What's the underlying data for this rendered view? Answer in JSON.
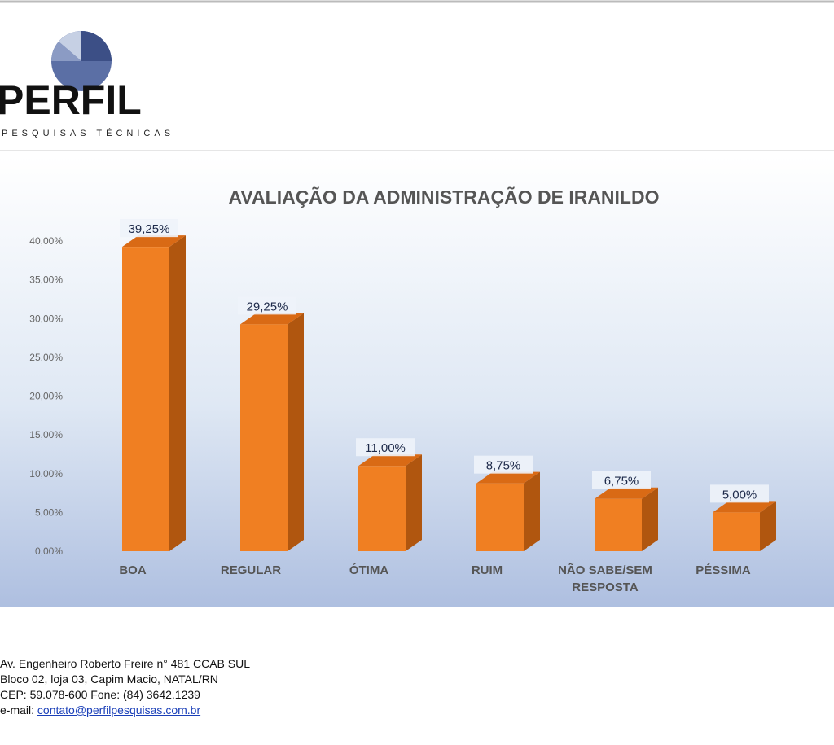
{
  "logo": {
    "name": "PERFIL",
    "tagline": "PESQUISAS TÉCNICAS"
  },
  "chart_data": {
    "type": "bar",
    "title": "AVALIAÇÃO DA ADMINISTRAÇÃO DE IRANILDO",
    "categories": [
      "BOA",
      "REGULAR",
      "ÓTIMA",
      "RUIM",
      "NÃO SABE/SEM RESPOSTA",
      "PÉSSIMA"
    ],
    "values": [
      39.25,
      29.25,
      11.0,
      8.75,
      6.75,
      5.0
    ],
    "value_labels": [
      "39,25%",
      "29,25%",
      "11,00%",
      "8,75%",
      "6,75%",
      "5,00%"
    ],
    "color": "#f07f22",
    "ylim": [
      0,
      40
    ],
    "yticks": [
      {
        "value": 0,
        "label": "0,00%"
      },
      {
        "value": 5,
        "label": "5,00%"
      },
      {
        "value": 10,
        "label": "10,00%"
      },
      {
        "value": 15,
        "label": "15,00%"
      },
      {
        "value": 20,
        "label": "20,00%"
      },
      {
        "value": 25,
        "label": "25,00%"
      },
      {
        "value": 30,
        "label": "30,00%"
      },
      {
        "value": 35,
        "label": "35,00%"
      },
      {
        "value": 40,
        "label": "40,00%"
      }
    ],
    "grid": false
  },
  "footer": {
    "address1": "Av. Engenheiro Roberto Freire n° 481 CCAB SUL",
    "address2": "Bloco 02, loja 03, Capim Macio, NATAL/RN",
    "phone": "CEP: 59.078-600 Fone: (84) 3642.1239",
    "email_label": "e-mail:",
    "email": "contato@perfilpesquisas.com.br"
  }
}
